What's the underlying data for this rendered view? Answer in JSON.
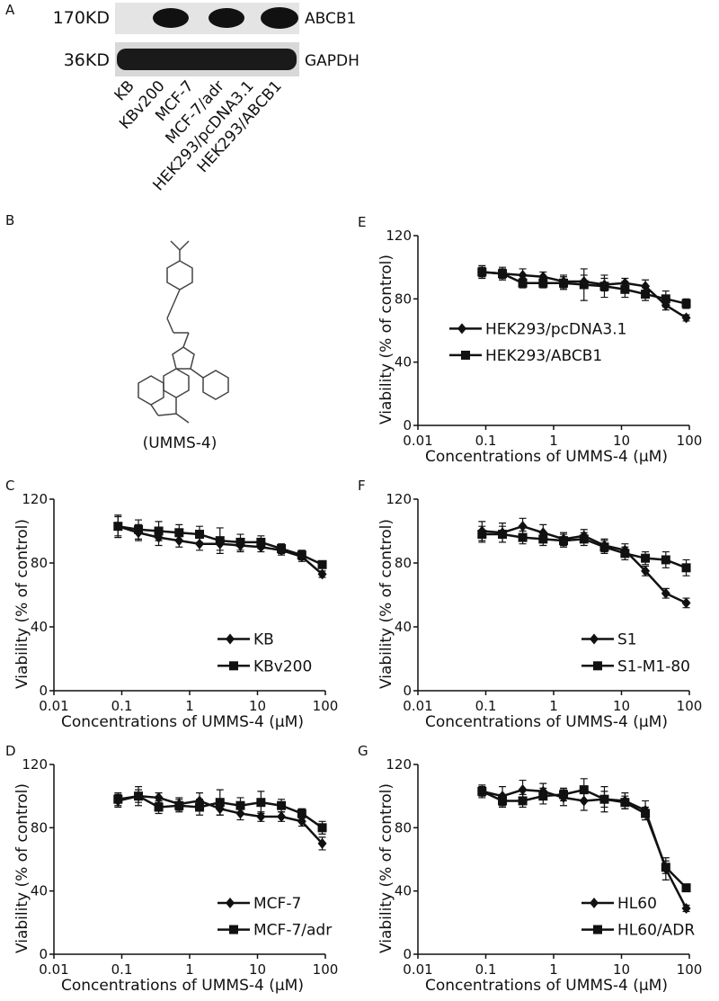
{
  "panel_a": {
    "label": "A",
    "rows": [
      {
        "size": "170KD",
        "protein": "ABCB1"
      },
      {
        "size": "36KD",
        "protein": "GAPDH"
      }
    ],
    "lanes": [
      "KB",
      "KBv200",
      "MCF-7",
      "MCF-7/adr",
      "HEK293/pcDNA3.1",
      "HEK293/ABCB1"
    ]
  },
  "panel_b": {
    "label": "B",
    "compound": "(UMMS-4)"
  },
  "chart_data": [
    {
      "type": "line",
      "panel_label": "E",
      "xlabel": "Concentrations of UMMS-4 (μM)",
      "ylabel": "Viability (% of control)",
      "x": [
        0.088,
        0.176,
        0.35,
        0.7,
        1.4,
        2.8,
        5.6,
        11.25,
        22.5,
        45,
        90
      ],
      "xlim": [
        0.01,
        100
      ],
      "xticks": [
        0.01,
        0.1,
        1,
        10,
        100
      ],
      "xscale": "log",
      "ylim": [
        0,
        120
      ],
      "yticks": [
        0,
        40,
        80,
        120
      ],
      "legend": "center right",
      "series": [
        {
          "name": "HEK293/pcDNA3.1",
          "color": "#111111",
          "marker": "diamond",
          "values": [
            97,
            96,
            95,
            94,
            91,
            91,
            89,
            90,
            88,
            76,
            68
          ],
          "errors": [
            3,
            3,
            4,
            3,
            4,
            4,
            4,
            3,
            4,
            3,
            2
          ]
        },
        {
          "name": "HEK293/ABCB1",
          "color": "#111111",
          "marker": "square",
          "values": [
            97,
            96,
            90,
            90,
            90,
            89,
            88,
            86,
            83,
            80,
            77
          ],
          "errors": [
            4,
            4,
            3,
            3,
            4,
            10,
            7,
            5,
            4,
            5,
            3
          ]
        }
      ]
    },
    {
      "type": "line",
      "panel_label": "C",
      "xlabel": "Concentrations of UMMS-4 (μM)",
      "ylabel": "Viability (% of control)",
      "x": [
        0.088,
        0.176,
        0.35,
        0.7,
        1.4,
        2.8,
        5.6,
        11.25,
        22.5,
        45,
        90
      ],
      "xlim": [
        0.01,
        100
      ],
      "xticks": [
        0.01,
        0.1,
        1,
        10,
        100
      ],
      "xscale": "log",
      "ylim": [
        0,
        120
      ],
      "yticks": [
        0,
        40,
        80,
        120
      ],
      "legend": "lower right",
      "series": [
        {
          "name": "KB",
          "color": "#111111",
          "marker": "diamond",
          "values": [
            103,
            99,
            96,
            94,
            92,
            92,
            91,
            90,
            88,
            84,
            73
          ],
          "errors": [
            6,
            5,
            5,
            4,
            4,
            4,
            4,
            3,
            3,
            3,
            2
          ]
        },
        {
          "name": "KBv200",
          "color": "#111111",
          "marker": "square",
          "values": [
            103,
            101,
            100,
            99,
            98,
            94,
            93,
            93,
            89,
            85,
            79
          ],
          "errors": [
            7,
            6,
            6,
            5,
            5,
            8,
            5,
            4,
            3,
            3,
            2
          ]
        }
      ]
    },
    {
      "type": "line",
      "panel_label": "F",
      "xlabel": "Concentrations of UMMS-4 (μM)",
      "ylabel": "Viability (% of control)",
      "x": [
        0.088,
        0.176,
        0.35,
        0.7,
        1.4,
        2.8,
        5.6,
        11.25,
        22.5,
        45,
        90
      ],
      "xlim": [
        0.01,
        100
      ],
      "xticks": [
        0.01,
        0.1,
        1,
        10,
        100
      ],
      "xscale": "log",
      "ylim": [
        0,
        120
      ],
      "yticks": [
        0,
        40,
        80,
        120
      ],
      "legend": "lower right",
      "series": [
        {
          "name": "S1",
          "color": "#111111",
          "marker": "diamond",
          "values": [
            100,
            99,
            103,
            99,
            95,
            97,
            91,
            88,
            75,
            61,
            55
          ],
          "errors": [
            6,
            6,
            5,
            5,
            4,
            4,
            4,
            4,
            3,
            3,
            3
          ]
        },
        {
          "name": "S1-M1-80",
          "color": "#111111",
          "marker": "square",
          "values": [
            98,
            98,
            96,
            95,
            94,
            95,
            90,
            86,
            83,
            82,
            77
          ],
          "errors": [
            5,
            5,
            4,
            4,
            4,
            4,
            4,
            4,
            4,
            5,
            5
          ]
        }
      ]
    },
    {
      "type": "line",
      "panel_label": "D",
      "xlabel": "Concentrations of UMMS-4 (μM)",
      "ylabel": "Viability (% of control)",
      "x": [
        0.088,
        0.176,
        0.35,
        0.7,
        1.4,
        2.8,
        5.6,
        11.25,
        22.5,
        45,
        90
      ],
      "xlim": [
        0.01,
        100
      ],
      "xticks": [
        0.01,
        0.1,
        1,
        10,
        100
      ],
      "xscale": "log",
      "ylim": [
        0,
        120
      ],
      "yticks": [
        0,
        40,
        80,
        120
      ],
      "legend": "lower right",
      "series": [
        {
          "name": "MCF-7",
          "color": "#111111",
          "marker": "diamond",
          "values": [
            97,
            100,
            99,
            95,
            97,
            92,
            89,
            87,
            87,
            84,
            70
          ],
          "errors": [
            4,
            4,
            3,
            4,
            5,
            4,
            4,
            3,
            3,
            3,
            4
          ]
        },
        {
          "name": "MCF-7/adr",
          "color": "#111111",
          "marker": "square",
          "values": [
            98,
            100,
            93,
            94,
            93,
            96,
            94,
            96,
            94,
            89,
            80
          ],
          "errors": [
            4,
            6,
            4,
            4,
            5,
            8,
            5,
            7,
            4,
            3,
            4
          ]
        }
      ]
    },
    {
      "type": "line",
      "panel_label": "G",
      "xlabel": "Concentrations of UMMS-4 (μM)",
      "ylabel": "Viability (% of control)",
      "x": [
        0.088,
        0.176,
        0.35,
        0.7,
        1.4,
        2.8,
        5.6,
        11.25,
        22.5,
        45,
        90
      ],
      "xlim": [
        0.01,
        100
      ],
      "xticks": [
        0.01,
        0.1,
        1,
        10,
        100
      ],
      "xscale": "log",
      "ylim": [
        0,
        120
      ],
      "yticks": [
        0,
        40,
        80,
        120
      ],
      "legend": "lower right",
      "series": [
        {
          "name": "HL60",
          "color": "#111111",
          "marker": "diamond",
          "values": [
            103,
            100,
            104,
            103,
            99,
            97,
            98,
            97,
            91,
            54,
            29
          ],
          "errors": [
            4,
            6,
            6,
            5,
            5,
            6,
            8,
            5,
            6,
            7,
            2
          ]
        },
        {
          "name": "HL60/ADR",
          "color": "#111111",
          "marker": "square",
          "values": [
            103,
            97,
            97,
            100,
            101,
            104,
            98,
            96,
            89,
            55,
            42
          ],
          "errors": [
            3,
            4,
            4,
            5,
            4,
            7,
            5,
            4,
            4,
            4,
            2
          ]
        }
      ]
    }
  ]
}
